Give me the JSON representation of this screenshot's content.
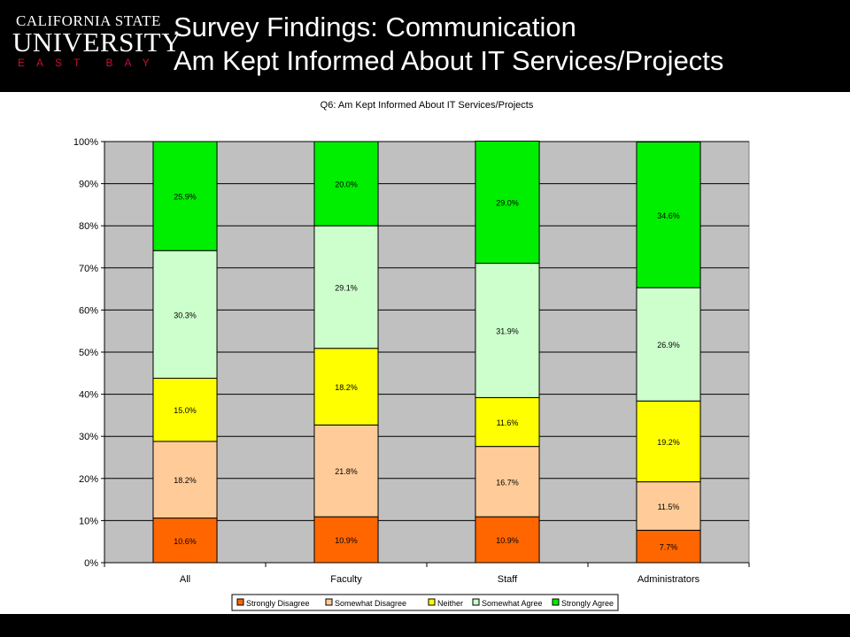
{
  "header": {
    "logo": {
      "line1": "CALIFORNIA STATE",
      "line2": "UNIVERSITY",
      "line3": "EAST BAY"
    },
    "title_line1": "Survey Findings: Communication",
    "title_line2": "Am Kept Informed About IT Services/Projects"
  },
  "colors": {
    "header_bg": "#000000",
    "plot_bg": "#c0c0c0"
  },
  "chart_data": {
    "type": "bar",
    "stacked": true,
    "percent_stacked": true,
    "title": "Q6: Am Kept Informed About IT Services/Projects",
    "xlabel": "",
    "ylabel": "",
    "ylim": [
      0,
      100
    ],
    "yticks": [
      "0%",
      "10%",
      "20%",
      "30%",
      "40%",
      "50%",
      "60%",
      "70%",
      "80%",
      "90%",
      "100%"
    ],
    "categories": [
      "All",
      "Faculty",
      "Staff",
      "Administrators"
    ],
    "series": [
      {
        "name": "Strongly Disagree",
        "color": "#ff6600",
        "values": [
          10.6,
          10.9,
          10.9,
          7.7
        ],
        "labels": [
          "10.6%",
          "10.9%",
          "10.9%",
          "7.7%"
        ]
      },
      {
        "name": "Somewhat Disagree",
        "color": "#ffcc99",
        "values": [
          18.2,
          21.8,
          16.7,
          11.5
        ],
        "labels": [
          "18.2%",
          "21.8%",
          "16.7%",
          "11.5%"
        ]
      },
      {
        "name": "Neither",
        "color": "#ffff00",
        "values": [
          15.0,
          18.2,
          11.6,
          19.2
        ],
        "labels": [
          "15.0%",
          "18.2%",
          "11.6%",
          "19.2%"
        ]
      },
      {
        "name": "Somewhat Agree",
        "color": "#ccffcc",
        "values": [
          30.3,
          29.1,
          31.9,
          26.9
        ],
        "labels": [
          "30.3%",
          "29.1%",
          "31.9%",
          "26.9%"
        ]
      },
      {
        "name": "Strongly Agree",
        "color": "#00ee00",
        "values": [
          25.9,
          20.0,
          29.0,
          34.6
        ],
        "labels": [
          "25.9%",
          "20.0%",
          "29.0%",
          "34.6%"
        ]
      }
    ],
    "grid": true,
    "legend_position": "bottom"
  }
}
